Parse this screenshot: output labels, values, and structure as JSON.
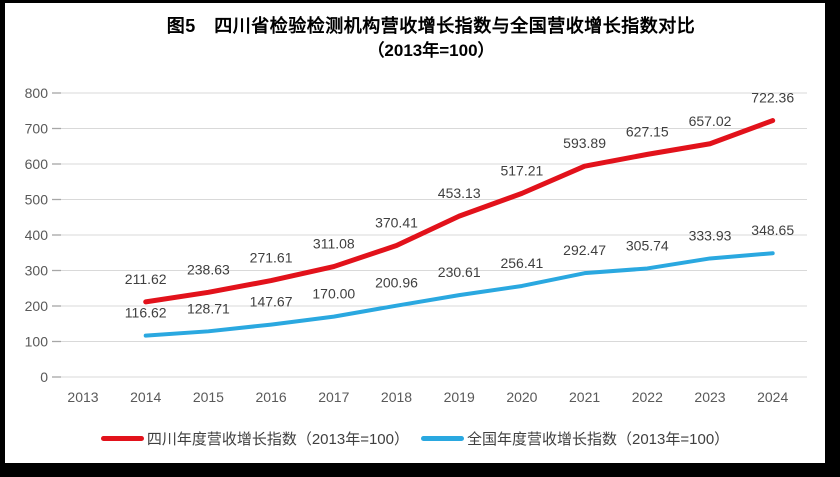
{
  "frame": {
    "background_color": "#000000",
    "card_color": "#ffffff"
  },
  "header": {
    "line1": "图5　四川省检验检测机构营收增长指数与全国营收增长指数对比",
    "line2": "（2013年=100）"
  },
  "chart_data": {
    "type": "line",
    "title": "图5 四川省检验检测机构营收增长指数与全国营收增长指数对比（2013年=100）",
    "categories": [
      "2013",
      "2014",
      "2015",
      "2016",
      "2017",
      "2018",
      "2019",
      "2020",
      "2021",
      "2022",
      "2023",
      "2024"
    ],
    "series": [
      {
        "name": "四川年度营收增长指数（2013年=100）",
        "color": "#e2121b",
        "start_category": "2014",
        "values": [
          211.62,
          238.63,
          271.61,
          311.08,
          370.41,
          453.13,
          517.21,
          593.89,
          627.15,
          657.02,
          722.36
        ],
        "labels": [
          "211.62",
          "238.63",
          "271.61",
          "311.08",
          "370.41",
          "453.13",
          "517.21",
          "593.89",
          "627.15",
          "657.02",
          "722.36"
        ]
      },
      {
        "name": "全国年度营收增长指数（2013年=100）",
        "color": "#2aa8e0",
        "start_category": "2014",
        "values": [
          116.62,
          128.71,
          147.67,
          170.0,
          200.96,
          230.61,
          256.41,
          292.47,
          305.74,
          333.93,
          348.65
        ],
        "labels": [
          "116.62",
          "128.71",
          "147.67",
          "170.00",
          "200.96",
          "230.61",
          "256.41",
          "292.47",
          "305.74",
          "333.93",
          "348.65"
        ]
      }
    ],
    "ylim": [
      0,
      800
    ],
    "ytick_step": 100,
    "ytick_labels": [
      "0",
      "100",
      "200",
      "300",
      "400",
      "500",
      "600",
      "700",
      "800"
    ],
    "grid": true,
    "grid_color": "#d9d9d9",
    "tick_color": "#a6a6a6",
    "data_labels": true,
    "legend_position": "bottom"
  }
}
